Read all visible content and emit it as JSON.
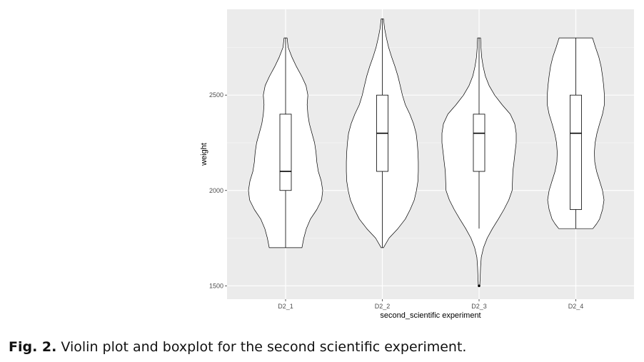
{
  "chart_data": {
    "type": "violin",
    "xlabel": "second_scientific experiment",
    "ylabel": "weight",
    "categories": [
      "D2_1",
      "D2_2",
      "D2_3",
      "D2_4"
    ],
    "ylim": [
      1430,
      2950
    ],
    "yticks": [
      1500,
      2000,
      2500
    ],
    "grid": true,
    "panel_background": "#ebebeb",
    "grid_color": "#ffffff",
    "series": [
      {
        "name": "D2_1",
        "box": {
          "q1": 2000,
          "median": 2100,
          "q3": 2400,
          "whisker_low": 1700,
          "whisker_high": 2800
        },
        "outliers": [],
        "density": [
          [
            1700,
            0.44
          ],
          [
            1750,
            0.49
          ],
          [
            1800,
            0.56
          ],
          [
            1850,
            0.67
          ],
          [
            1900,
            0.84
          ],
          [
            1950,
            0.97
          ],
          [
            2000,
            1.0
          ],
          [
            2050,
            0.96
          ],
          [
            2100,
            0.88
          ],
          [
            2150,
            0.84
          ],
          [
            2200,
            0.82
          ],
          [
            2250,
            0.78
          ],
          [
            2300,
            0.71
          ],
          [
            2350,
            0.64
          ],
          [
            2400,
            0.6
          ],
          [
            2450,
            0.58
          ],
          [
            2500,
            0.6
          ],
          [
            2550,
            0.55
          ],
          [
            2600,
            0.43
          ],
          [
            2650,
            0.29
          ],
          [
            2700,
            0.17
          ],
          [
            2750,
            0.07
          ],
          [
            2800,
            0.04
          ]
        ]
      },
      {
        "name": "D2_2",
        "box": {
          "q1": 2100,
          "median": 2300,
          "q3": 2500,
          "whisker_low": 1700,
          "whisker_high": 2900
        },
        "outliers": [],
        "density": [
          [
            1700,
            0.03
          ],
          [
            1750,
            0.18
          ],
          [
            1800,
            0.42
          ],
          [
            1850,
            0.62
          ],
          [
            1900,
            0.75
          ],
          [
            1950,
            0.86
          ],
          [
            2000,
            0.92
          ],
          [
            2050,
            0.96
          ],
          [
            2100,
            0.97
          ],
          [
            2150,
            0.97
          ],
          [
            2200,
            0.96
          ],
          [
            2250,
            0.94
          ],
          [
            2300,
            0.91
          ],
          [
            2350,
            0.84
          ],
          [
            2400,
            0.74
          ],
          [
            2450,
            0.62
          ],
          [
            2500,
            0.54
          ],
          [
            2550,
            0.48
          ],
          [
            2600,
            0.42
          ],
          [
            2650,
            0.34
          ],
          [
            2700,
            0.25
          ],
          [
            2750,
            0.17
          ],
          [
            2800,
            0.11
          ],
          [
            2850,
            0.06
          ],
          [
            2900,
            0.03
          ]
        ]
      },
      {
        "name": "D2_3",
        "box": {
          "q1": 2100,
          "median": 2300,
          "q3": 2400,
          "whisker_low": 1800,
          "whisker_high": 2800
        },
        "outliers": [
          1500
        ],
        "density": [
          [
            1500,
            0.02
          ],
          [
            1550,
            0.03
          ],
          [
            1600,
            0.04
          ],
          [
            1650,
            0.06
          ],
          [
            1700,
            0.12
          ],
          [
            1750,
            0.22
          ],
          [
            1800,
            0.36
          ],
          [
            1850,
            0.52
          ],
          [
            1900,
            0.67
          ],
          [
            1950,
            0.8
          ],
          [
            2000,
            0.89
          ],
          [
            2050,
            0.9
          ],
          [
            2100,
            0.91
          ],
          [
            2150,
            0.94
          ],
          [
            2200,
            0.97
          ],
          [
            2250,
            1.0
          ],
          [
            2300,
            1.0
          ],
          [
            2350,
            0.96
          ],
          [
            2400,
            0.84
          ],
          [
            2450,
            0.62
          ],
          [
            2500,
            0.42
          ],
          [
            2550,
            0.27
          ],
          [
            2600,
            0.17
          ],
          [
            2650,
            0.11
          ],
          [
            2700,
            0.07
          ],
          [
            2750,
            0.05
          ],
          [
            2800,
            0.04
          ]
        ]
      },
      {
        "name": "D2_4",
        "box": {
          "q1": 1900,
          "median": 2300,
          "q3": 2500,
          "whisker_low": 1800,
          "whisker_high": 2800
        },
        "outliers": [],
        "density": [
          [
            1800,
            0.46
          ],
          [
            1825,
            0.56
          ],
          [
            1850,
            0.64
          ],
          [
            1900,
            0.72
          ],
          [
            1950,
            0.76
          ],
          [
            2000,
            0.72
          ],
          [
            2050,
            0.64
          ],
          [
            2100,
            0.56
          ],
          [
            2150,
            0.51
          ],
          [
            2200,
            0.5
          ],
          [
            2250,
            0.52
          ],
          [
            2300,
            0.57
          ],
          [
            2350,
            0.64
          ],
          [
            2400,
            0.72
          ],
          [
            2450,
            0.77
          ],
          [
            2500,
            0.77
          ],
          [
            2550,
            0.75
          ],
          [
            2600,
            0.72
          ],
          [
            2650,
            0.68
          ],
          [
            2700,
            0.62
          ],
          [
            2750,
            0.53
          ],
          [
            2800,
            0.45
          ]
        ]
      }
    ]
  },
  "caption": {
    "label": "Fig. 2.",
    "text": " Violin plot and boxplot for the second scientific experiment."
  }
}
